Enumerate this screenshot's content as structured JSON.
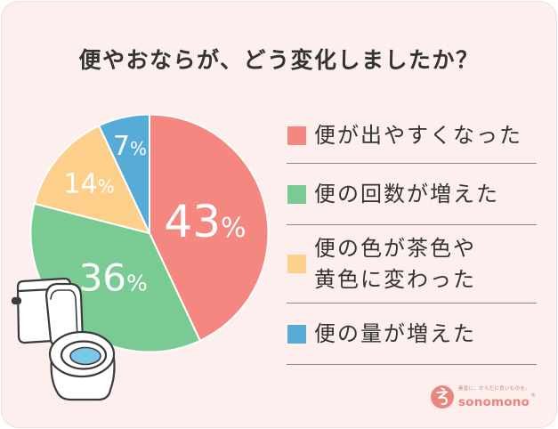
{
  "chart_data": {
    "type": "pie",
    "title": "便やおならが、どう変化しましたか？",
    "unit": "%",
    "slices": [
      {
        "label": "便が出やすくなった",
        "value": 43,
        "color": "#f4877f"
      },
      {
        "label": "便の回数が増えた",
        "value": 36,
        "color": "#7acb93"
      },
      {
        "label": "便の色が茶色や\n黄色に変わった",
        "value": 14,
        "color": "#fcd08b"
      },
      {
        "label": "便の量が増えた",
        "value": 7,
        "color": "#56abd7"
      }
    ],
    "legend_position": "right"
  },
  "colors": {
    "background": "#fcefee",
    "title_text": "#333333",
    "slice_label_text": "#ffffff",
    "divider": "#8a8a8a",
    "brand": "#ea8680"
  },
  "illustration": {
    "icon": "toilet-icon"
  },
  "logo": {
    "icon": "sonomono-logo-icon",
    "tagline": "素直に、からだに良いものを。",
    "name": "sonomono",
    "mark": "®"
  }
}
